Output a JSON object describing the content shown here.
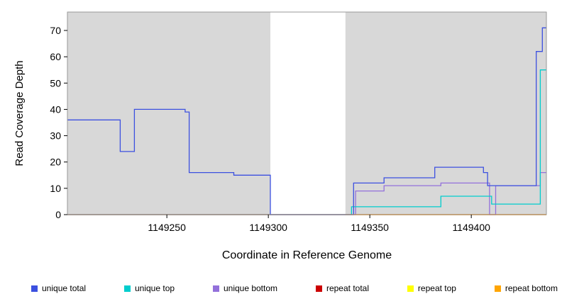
{
  "chart_data": {
    "type": "line",
    "step": true,
    "title": "",
    "xlabel": "Coordinate in Reference Genome",
    "ylabel": "Read Coverage Depth",
    "xlim": [
      1149201,
      1149437
    ],
    "ylim": [
      0,
      77
    ],
    "xticks": [
      1149250,
      1149300,
      1149350,
      1149400
    ],
    "yticks": [
      0,
      10,
      20,
      30,
      40,
      50,
      60,
      70
    ],
    "grid": false,
    "border_color": "#999999",
    "tick_color": "#000000",
    "background_color": "#ffffff",
    "shaded_regions": [
      {
        "x0": 1149201,
        "x1": 1149301,
        "color": "#d8d8d8"
      },
      {
        "x0": 1149338,
        "x1": 1149437,
        "color": "#d8d8d8"
      }
    ],
    "legend_position": "bottom",
    "draw_order": [
      4,
      2,
      1,
      3,
      5,
      0
    ],
    "series": [
      {
        "name": "unique total",
        "color": "#3c50e0",
        "points": [
          [
            1149201,
            36
          ],
          [
            1149227,
            36
          ],
          [
            1149227,
            24
          ],
          [
            1149234,
            24
          ],
          [
            1149234,
            40
          ],
          [
            1149259,
            40
          ],
          [
            1149259,
            39
          ],
          [
            1149261,
            39
          ],
          [
            1149261,
            16
          ],
          [
            1149283,
            16
          ],
          [
            1149283,
            15
          ],
          [
            1149301,
            15
          ],
          [
            1149301,
            0
          ],
          [
            1149342,
            0
          ],
          [
            1149342,
            12
          ],
          [
            1149357,
            12
          ],
          [
            1149357,
            14
          ],
          [
            1149382,
            14
          ],
          [
            1149382,
            18
          ],
          [
            1149406,
            18
          ],
          [
            1149406,
            16
          ],
          [
            1149408,
            16
          ],
          [
            1149408,
            11
          ],
          [
            1149432,
            11
          ],
          [
            1149432,
            62
          ],
          [
            1149435,
            62
          ],
          [
            1149435,
            71
          ],
          [
            1149437,
            71
          ]
        ]
      },
      {
        "name": "unique top",
        "color": "#00cdcd",
        "points": [
          [
            1149201,
            0
          ],
          [
            1149341,
            0
          ],
          [
            1149341,
            3
          ],
          [
            1149385,
            3
          ],
          [
            1149385,
            7
          ],
          [
            1149410,
            7
          ],
          [
            1149410,
            4
          ],
          [
            1149434,
            4
          ],
          [
            1149434,
            55
          ],
          [
            1149437,
            55
          ]
        ]
      },
      {
        "name": "unique bottom",
        "color": "#9370db",
        "points": [
          [
            1149201,
            0
          ],
          [
            1149343,
            0
          ],
          [
            1149343,
            9
          ],
          [
            1149357,
            9
          ],
          [
            1149357,
            11
          ],
          [
            1149385,
            11
          ],
          [
            1149385,
            12
          ],
          [
            1149409,
            12
          ],
          [
            1149409,
            0
          ],
          [
            1149412,
            0
          ],
          [
            1149412,
            11
          ],
          [
            1149434,
            11
          ],
          [
            1149434,
            16
          ],
          [
            1149437,
            16
          ]
        ]
      },
      {
        "name": "repeat total",
        "color": "#cc0000",
        "points": [
          [
            1149201,
            0
          ],
          [
            1149437,
            0
          ]
        ]
      },
      {
        "name": "repeat top",
        "color": "#ffff00",
        "points": [
          [
            1149201,
            0
          ],
          [
            1149437,
            0
          ]
        ]
      },
      {
        "name": "repeat bottom",
        "color": "#ffa500",
        "points": [
          [
            1149338,
            0
          ],
          [
            1149437,
            0
          ]
        ]
      }
    ]
  }
}
